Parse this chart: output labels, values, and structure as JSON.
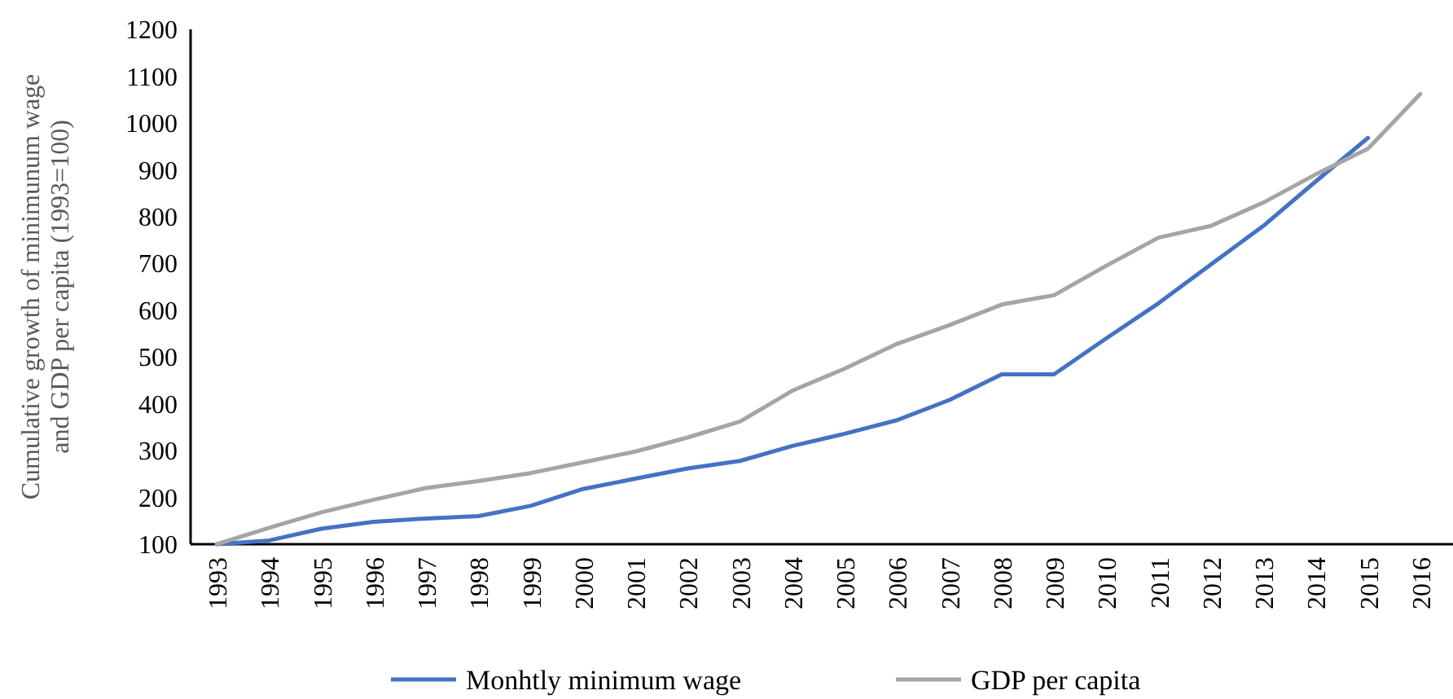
{
  "chart_data": {
    "type": "line",
    "ylabel": "Cumulative growth of minimunum wage\nand GDP per capita  (1993=100)",
    "categories": [
      "1993",
      "1994",
      "1995",
      "1996",
      "1997",
      "1998",
      "1999",
      "2000",
      "2001",
      "2002",
      "2003",
      "2004",
      "2005",
      "2006",
      "2007",
      "2008",
      "2009",
      "2010",
      "2011",
      "2012",
      "2013",
      "2014",
      "2015",
      "2016"
    ],
    "series": [
      {
        "name": "Monhtly minimum wage",
        "color": "#4472c4",
        "values": [
          100,
          108,
          133,
          148,
          155,
          160,
          182,
          218,
          240,
          262,
          278,
          310,
          336,
          365,
          408,
          463,
          463,
          540,
          615,
          698,
          780,
          875,
          968,
          null
        ]
      },
      {
        "name": "GDP per capita",
        "color": "#a5a5a5",
        "values": [
          100,
          135,
          168,
          195,
          220,
          235,
          252,
          275,
          298,
          328,
          362,
          428,
          475,
          528,
          568,
          612,
          632,
          695,
          755,
          780,
          830,
          890,
          945,
          1062
        ]
      }
    ],
    "ylim": [
      100,
      1200
    ],
    "yticks": [
      100,
      200,
      300,
      400,
      500,
      600,
      700,
      800,
      900,
      1000,
      1100,
      1200
    ],
    "grid": false,
    "legend": "bottom",
    "line_style": "solid",
    "marker": "none"
  }
}
